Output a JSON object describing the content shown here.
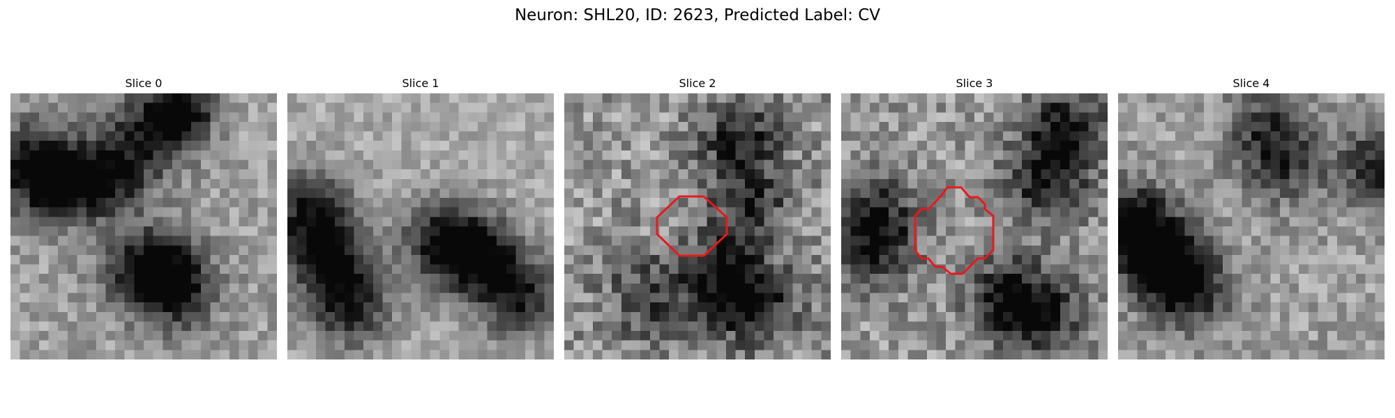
{
  "figure": {
    "title": "Neuron: SHL20, ID: 2623, Predicted Label: CV"
  },
  "panels": [
    {
      "title": "Slice 0",
      "contour": false
    },
    {
      "title": "Slice 1",
      "contour": false
    },
    {
      "title": "Slice 2",
      "contour": true
    },
    {
      "title": "Slice 3",
      "contour": true
    },
    {
      "title": "Slice 4",
      "contour": false
    }
  ],
  "colors": {
    "contour": "#e8191c",
    "colormap": "gray"
  }
}
